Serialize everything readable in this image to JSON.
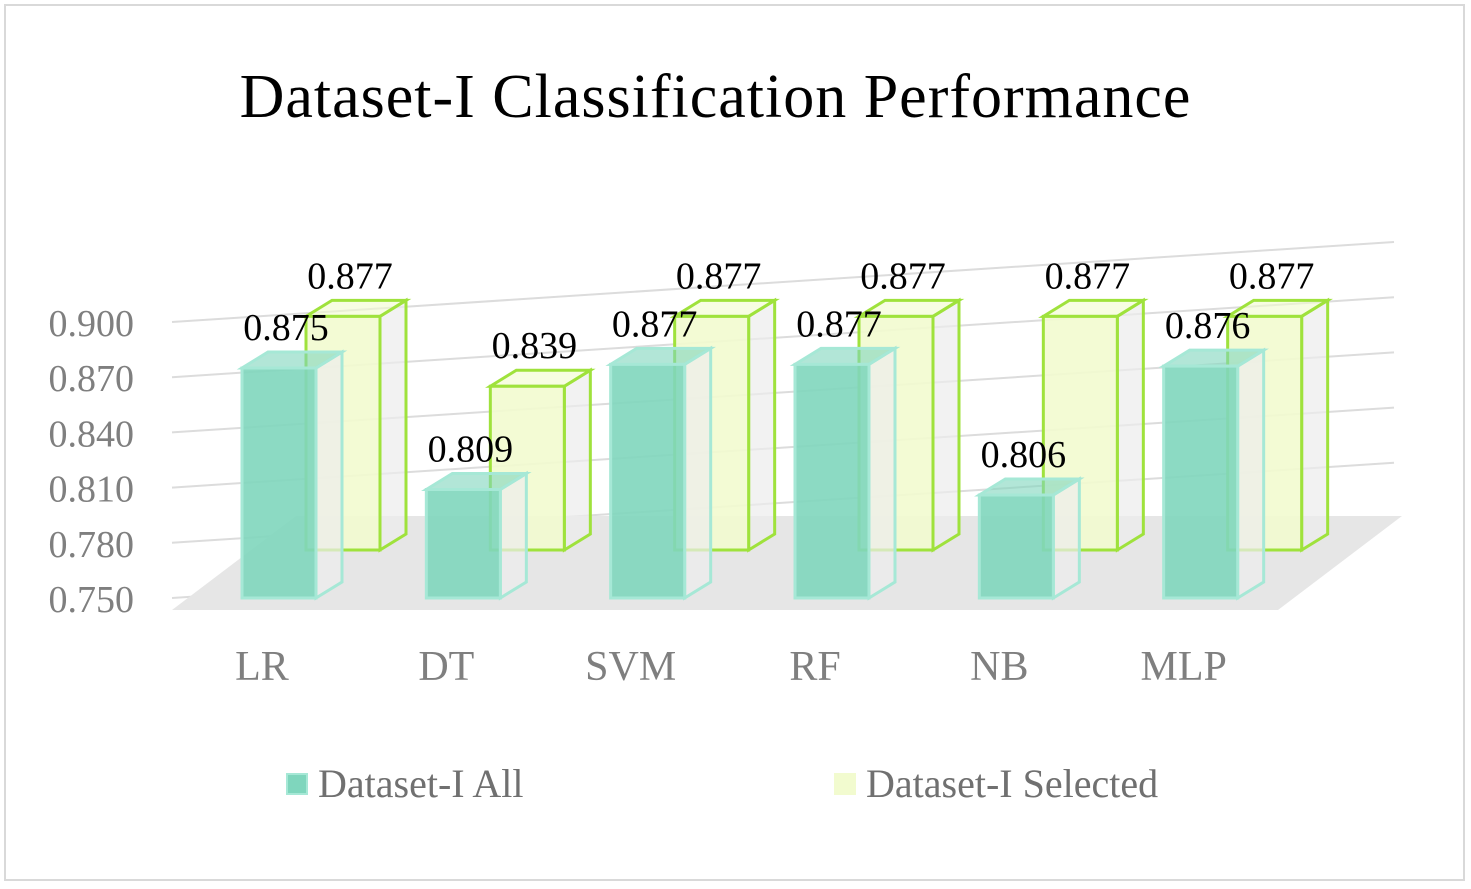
{
  "chart_data": {
    "type": "bar",
    "title": "Dataset-I Classification Performance",
    "categories": [
      "LR",
      "DT",
      "SVM",
      "RF",
      "NB",
      "MLP"
    ],
    "series": [
      {
        "name": "Dataset-I All",
        "values": [
          0.875,
          0.809,
          0.877,
          0.877,
          0.806,
          0.876
        ],
        "labels": [
          "0.875",
          "0.809",
          "0.877",
          "0.877",
          "0.806",
          "0.876"
        ],
        "color": "#7fd6bd",
        "edge": "#a6e8d6"
      },
      {
        "name": "Dataset-I Selected",
        "values": [
          0.877,
          0.839,
          0.877,
          0.877,
          0.877,
          0.877
        ],
        "labels": [
          "0.877",
          "0.839",
          "0.877",
          "0.877",
          "0.877",
          "0.877"
        ],
        "color": "#f2fbcf",
        "edge": "#9fe23c"
      }
    ],
    "yticks": [
      "0.750",
      "0.780",
      "0.810",
      "0.840",
      "0.870",
      "0.900"
    ],
    "ylim": [
      0.75,
      0.9
    ],
    "grid": true,
    "legend_position": "bottom",
    "view": "3d-clustered-column"
  }
}
